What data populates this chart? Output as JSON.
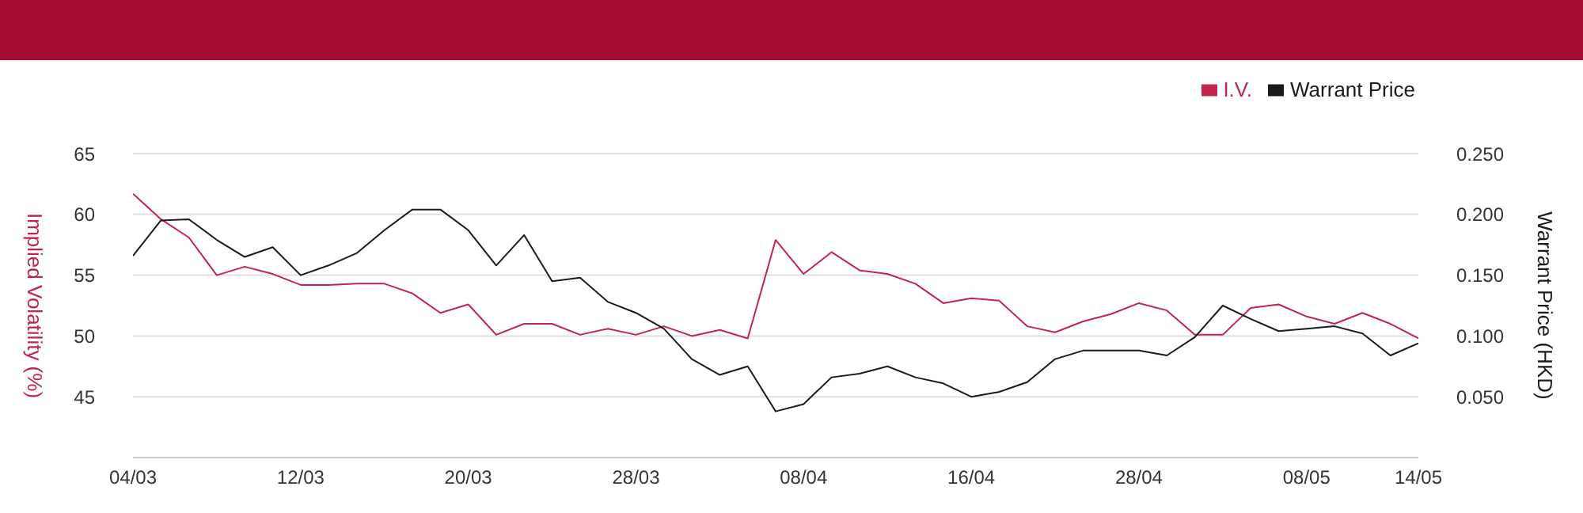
{
  "chart_data": {
    "type": "line",
    "ylabel": "Implied Volatility (%)",
    "y2label": "Warrant Price (HKD)",
    "categories": [
      "04/03",
      null,
      null,
      null,
      null,
      null,
      "12/03",
      null,
      null,
      null,
      null,
      null,
      "20/03",
      null,
      null,
      null,
      null,
      null,
      "28/03",
      null,
      null,
      null,
      null,
      null,
      "08/04",
      null,
      null,
      null,
      null,
      null,
      "16/04",
      null,
      null,
      null,
      null,
      null,
      "28/04",
      null,
      null,
      null,
      null,
      null,
      "08/05",
      null,
      null,
      null,
      "14/05"
    ],
    "series": [
      {
        "name": "I.V.",
        "color": "#c0254e",
        "values": [
          61.7,
          59.6,
          58.1,
          55.0,
          55.7,
          55.1,
          54.2,
          54.2,
          54.3,
          54.3,
          53.5,
          51.9,
          52.6,
          50.1,
          51.0,
          51.0,
          50.1,
          50.6,
          50.1,
          50.8,
          50.0,
          50.5,
          49.8,
          57.9,
          55.1,
          56.9,
          55.4,
          55.1,
          54.3,
          52.7,
          53.1,
          52.9,
          50.8,
          50.3,
          51.2,
          51.8,
          52.7,
          52.1,
          50.1,
          50.1,
          52.3,
          52.6,
          51.6,
          51.0,
          51.9,
          51.0,
          49.8
        ]
      },
      {
        "name": "Warrant Price",
        "color": "#1a1a1a",
        "axis": "y2",
        "values": [
          0.166,
          0.195,
          0.196,
          0.179,
          0.165,
          0.173,
          0.15,
          0.158,
          0.168,
          0.187,
          0.204,
          0.204,
          0.187,
          0.158,
          0.183,
          0.145,
          0.148,
          0.128,
          0.119,
          0.106,
          0.081,
          0.068,
          0.075,
          0.038,
          0.044,
          0.066,
          0.069,
          0.075,
          0.066,
          0.061,
          0.05,
          0.054,
          0.062,
          0.081,
          0.088,
          0.088,
          0.088,
          0.084,
          0.099,
          0.125,
          0.114,
          0.104,
          0.106,
          0.108,
          0.102,
          0.084,
          0.094
        ]
      }
    ],
    "ylim": [
      40,
      65
    ],
    "yticks": [
      45,
      50,
      55,
      60,
      65
    ],
    "y2lim": [
      0,
      0.25
    ],
    "y2ticks": [
      {
        "value": 0.05,
        "label": "0.050"
      },
      {
        "value": 0.1,
        "label": "0.100"
      },
      {
        "value": 0.15,
        "label": "0.150"
      },
      {
        "value": 0.2,
        "label": "0.200"
      },
      {
        "value": 0.25,
        "label": "0.250"
      }
    ],
    "grid": "y",
    "legend": "top right",
    "marker": "none",
    "line_style": "solid"
  }
}
